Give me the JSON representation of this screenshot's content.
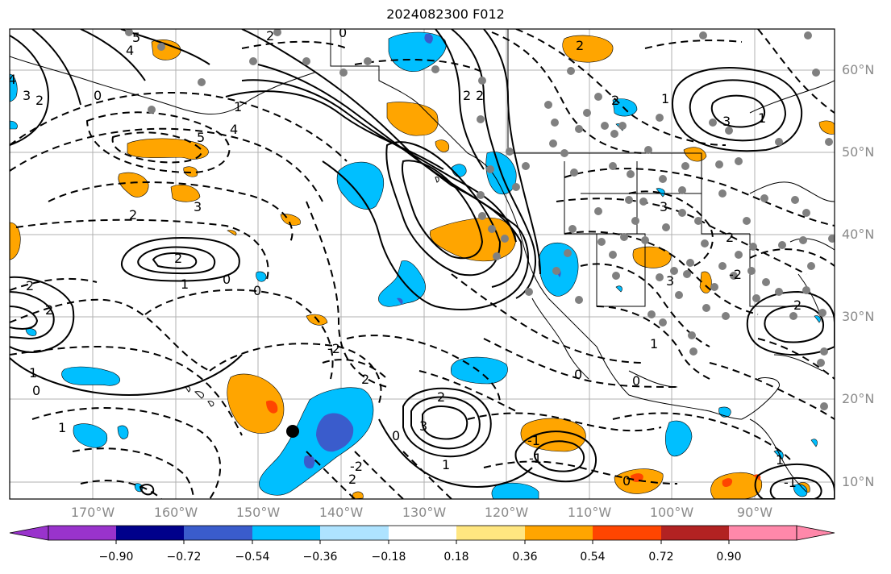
{
  "title": "2024082300 F012",
  "lat_labels": [
    "60°N",
    "50°N",
    "40°N",
    "30°N",
    "20°N",
    "10°N"
  ],
  "lon_labels": [
    "170°W",
    "160°W",
    "150°W",
    "140°W",
    "130°W",
    "120°W",
    "110°W",
    "100°W",
    "90°W"
  ],
  "colorbar": {
    "ticks": [
      "−0.90",
      "−0.72",
      "−0.54",
      "−0.36",
      "−0.18",
      "0.18",
      "0.36",
      "0.54",
      "0.72",
      "0.90"
    ],
    "colors": [
      "#9933cc",
      "#00008b",
      "#3a5ccc",
      "#00bfff",
      "#aee3ff",
      "#ffffff",
      "#ffe680",
      "#ffa500",
      "#ff4500",
      "#b22222",
      "#ff88aa"
    ]
  },
  "contour_labels": [
    "0",
    "2",
    "5",
    "2",
    "4",
    "0",
    "2",
    "3",
    "2",
    "-2",
    "4",
    "1",
    "5",
    "4",
    "3",
    "2",
    "2",
    "1",
    "0",
    "2",
    "2",
    "1",
    "2",
    "0",
    "1",
    "1",
    "2",
    "3",
    "2",
    "2",
    "1",
    "3",
    "3",
    "0",
    "-2",
    "0",
    "-1",
    "1",
    "0",
    "-2",
    "2",
    "2",
    "1",
    "0",
    "-1",
    "3",
    "-1",
    "1",
    "0",
    "2"
  ],
  "colors": {
    "positive_contour": "#000000",
    "negative_contour": "#000000",
    "land": "#000000",
    "station_dot": "#808080"
  }
}
